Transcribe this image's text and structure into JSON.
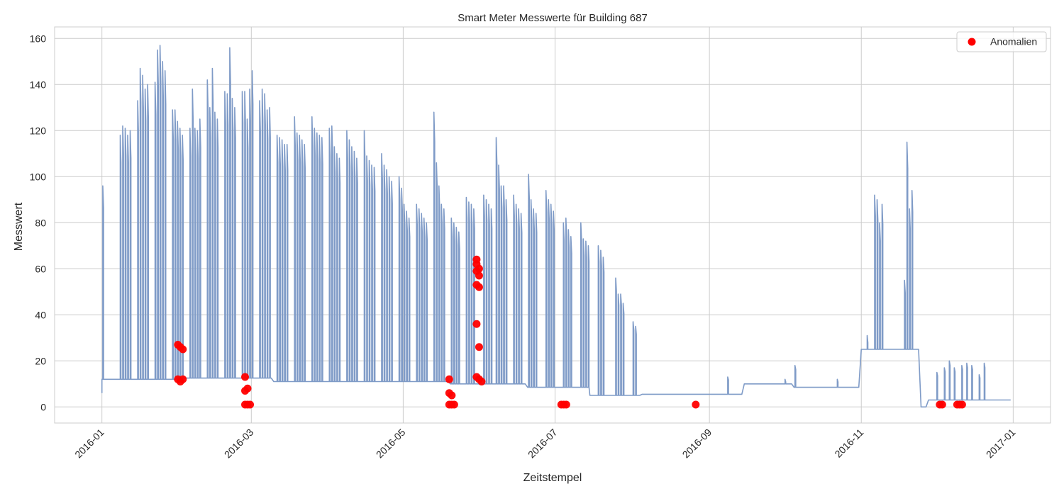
{
  "chart_data": {
    "type": "line",
    "title": "Smart Meter Messwerte für Building 687",
    "xlabel": "Zeitstempel",
    "ylabel": "Messwert",
    "xlim": [
      "2015-12-13",
      "2017-01-16"
    ],
    "ylim": [
      -7,
      165
    ],
    "x_ticks": [
      "2016-01",
      "2016-03",
      "2016-05",
      "2016-07",
      "2016-09",
      "2016-11",
      "2017-01"
    ],
    "y_ticks": [
      0,
      20,
      40,
      60,
      80,
      100,
      120,
      140,
      160
    ],
    "grid": true,
    "legend_position": "top-right",
    "colors": {
      "series": "#7f9bc7",
      "anomaly": "#ff0000",
      "grid": "#cccccc"
    },
    "series": [
      {
        "type": "line",
        "baseline_segments": [
          {
            "from": "2016-01-01",
            "to": "2016-01-31",
            "base": 12
          },
          {
            "from": "2016-01-31",
            "to": "2016-03-10",
            "base": 12.5
          },
          {
            "from": "2016-03-10",
            "to": "2016-05-20",
            "base": 11
          },
          {
            "from": "2016-05-20",
            "to": "2016-06-20",
            "base": 10
          },
          {
            "from": "2016-06-20",
            "to": "2016-07-15",
            "base": 8.5
          },
          {
            "from": "2016-07-15",
            "to": "2016-08-05",
            "base": 5
          },
          {
            "from": "2016-08-05",
            "to": "2016-09-15",
            "base": 5.5
          },
          {
            "from": "2016-09-15",
            "to": "2016-10-05",
            "base": 10
          },
          {
            "from": "2016-10-05",
            "to": "2016-11-01",
            "base": 8.5
          },
          {
            "from": "2016-11-01",
            "to": "2016-11-25",
            "base": 25
          },
          {
            "from": "2016-11-25",
            "to": "2016-11-28",
            "base": 0
          },
          {
            "from": "2016-11-28",
            "to": "2016-12-31",
            "base": 3
          }
        ],
        "daily_peaks": [
          {
            "x": "2016-01-01",
            "y": 96
          },
          {
            "x": "2016-01-08",
            "y": 118
          },
          {
            "x": "2016-01-09",
            "y": 122
          },
          {
            "x": "2016-01-10",
            "y": 121
          },
          {
            "x": "2016-01-11",
            "y": 118
          },
          {
            "x": "2016-01-12",
            "y": 120
          },
          {
            "x": "2016-01-15",
            "y": 133
          },
          {
            "x": "2016-01-16",
            "y": 147
          },
          {
            "x": "2016-01-17",
            "y": 144
          },
          {
            "x": "2016-01-18",
            "y": 138
          },
          {
            "x": "2016-01-19",
            "y": 140
          },
          {
            "x": "2016-01-22",
            "y": 141
          },
          {
            "x": "2016-01-23",
            "y": 155
          },
          {
            "x": "2016-01-24",
            "y": 157
          },
          {
            "x": "2016-01-25",
            "y": 150
          },
          {
            "x": "2016-01-26",
            "y": 146
          },
          {
            "x": "2016-01-29",
            "y": 129
          },
          {
            "x": "2016-01-30",
            "y": 129
          },
          {
            "x": "2016-01-31",
            "y": 124
          },
          {
            "x": "2016-02-01",
            "y": 121
          },
          {
            "x": "2016-02-02",
            "y": 118
          },
          {
            "x": "2016-02-05",
            "y": 121
          },
          {
            "x": "2016-02-06",
            "y": 138
          },
          {
            "x": "2016-02-07",
            "y": 121
          },
          {
            "x": "2016-02-08",
            "y": 120
          },
          {
            "x": "2016-02-09",
            "y": 125
          },
          {
            "x": "2016-02-12",
            "y": 142
          },
          {
            "x": "2016-02-13",
            "y": 130
          },
          {
            "x": "2016-02-14",
            "y": 147
          },
          {
            "x": "2016-02-15",
            "y": 128
          },
          {
            "x": "2016-02-16",
            "y": 125
          },
          {
            "x": "2016-02-19",
            "y": 137
          },
          {
            "x": "2016-02-20",
            "y": 136
          },
          {
            "x": "2016-02-21",
            "y": 156
          },
          {
            "x": "2016-02-22",
            "y": 134
          },
          {
            "x": "2016-02-23",
            "y": 130
          },
          {
            "x": "2016-02-26",
            "y": 137
          },
          {
            "x": "2016-02-27",
            "y": 137
          },
          {
            "x": "2016-02-28",
            "y": 125
          },
          {
            "x": "2016-02-29",
            "y": 138
          },
          {
            "x": "2016-03-01",
            "y": 146
          },
          {
            "x": "2016-03-04",
            "y": 133
          },
          {
            "x": "2016-03-05",
            "y": 138
          },
          {
            "x": "2016-03-06",
            "y": 136
          },
          {
            "x": "2016-03-07",
            "y": 129
          },
          {
            "x": "2016-03-08",
            "y": 130
          },
          {
            "x": "2016-03-11",
            "y": 118
          },
          {
            "x": "2016-03-12",
            "y": 117
          },
          {
            "x": "2016-03-13",
            "y": 116
          },
          {
            "x": "2016-03-14",
            "y": 114
          },
          {
            "x": "2016-03-15",
            "y": 114
          },
          {
            "x": "2016-03-18",
            "y": 126
          },
          {
            "x": "2016-03-19",
            "y": 119
          },
          {
            "x": "2016-03-20",
            "y": 118
          },
          {
            "x": "2016-03-21",
            "y": 116
          },
          {
            "x": "2016-03-22",
            "y": 114
          },
          {
            "x": "2016-03-25",
            "y": 126
          },
          {
            "x": "2016-03-26",
            "y": 121
          },
          {
            "x": "2016-03-27",
            "y": 119
          },
          {
            "x": "2016-03-28",
            "y": 118
          },
          {
            "x": "2016-03-29",
            "y": 117
          },
          {
            "x": "2016-04-01",
            "y": 121
          },
          {
            "x": "2016-04-02",
            "y": 122
          },
          {
            "x": "2016-04-03",
            "y": 113
          },
          {
            "x": "2016-04-04",
            "y": 110
          },
          {
            "x": "2016-04-05",
            "y": 108
          },
          {
            "x": "2016-04-08",
            "y": 120
          },
          {
            "x": "2016-04-09",
            "y": 116
          },
          {
            "x": "2016-04-10",
            "y": 113
          },
          {
            "x": "2016-04-11",
            "y": 111
          },
          {
            "x": "2016-04-12",
            "y": 108
          },
          {
            "x": "2016-04-15",
            "y": 120
          },
          {
            "x": "2016-04-16",
            "y": 109
          },
          {
            "x": "2016-04-17",
            "y": 107
          },
          {
            "x": "2016-04-18",
            "y": 105
          },
          {
            "x": "2016-04-19",
            "y": 104
          },
          {
            "x": "2016-04-22",
            "y": 110
          },
          {
            "x": "2016-04-23",
            "y": 105
          },
          {
            "x": "2016-04-24",
            "y": 103
          },
          {
            "x": "2016-04-25",
            "y": 100
          },
          {
            "x": "2016-04-26",
            "y": 98
          },
          {
            "x": "2016-04-29",
            "y": 100
          },
          {
            "x": "2016-04-30",
            "y": 95
          },
          {
            "x": "2016-05-01",
            "y": 88
          },
          {
            "x": "2016-05-02",
            "y": 85
          },
          {
            "x": "2016-05-03",
            "y": 82
          },
          {
            "x": "2016-05-06",
            "y": 88
          },
          {
            "x": "2016-05-07",
            "y": 86
          },
          {
            "x": "2016-05-08",
            "y": 84
          },
          {
            "x": "2016-05-09",
            "y": 82
          },
          {
            "x": "2016-05-10",
            "y": 80
          },
          {
            "x": "2016-05-13",
            "y": 128
          },
          {
            "x": "2016-05-14",
            "y": 106
          },
          {
            "x": "2016-05-15",
            "y": 96
          },
          {
            "x": "2016-05-16",
            "y": 88
          },
          {
            "x": "2016-05-17",
            "y": 86
          },
          {
            "x": "2016-05-20",
            "y": 82
          },
          {
            "x": "2016-05-21",
            "y": 80
          },
          {
            "x": "2016-05-22",
            "y": 78
          },
          {
            "x": "2016-05-23",
            "y": 76
          },
          {
            "x": "2016-05-26",
            "y": 91
          },
          {
            "x": "2016-05-27",
            "y": 89
          },
          {
            "x": "2016-05-28",
            "y": 88
          },
          {
            "x": "2016-05-29",
            "y": 86
          },
          {
            "x": "2016-06-02",
            "y": 92
          },
          {
            "x": "2016-06-03",
            "y": 90
          },
          {
            "x": "2016-06-04",
            "y": 88
          },
          {
            "x": "2016-06-05",
            "y": 86
          },
          {
            "x": "2016-06-07",
            "y": 117
          },
          {
            "x": "2016-06-08",
            "y": 105
          },
          {
            "x": "2016-06-09",
            "y": 96
          },
          {
            "x": "2016-06-10",
            "y": 96
          },
          {
            "x": "2016-06-11",
            "y": 90
          },
          {
            "x": "2016-06-14",
            "y": 92
          },
          {
            "x": "2016-06-15",
            "y": 88
          },
          {
            "x": "2016-06-16",
            "y": 86
          },
          {
            "x": "2016-06-17",
            "y": 84
          },
          {
            "x": "2016-06-20",
            "y": 101
          },
          {
            "x": "2016-06-21",
            "y": 90
          },
          {
            "x": "2016-06-22",
            "y": 86
          },
          {
            "x": "2016-06-23",
            "y": 84
          },
          {
            "x": "2016-06-27",
            "y": 94
          },
          {
            "x": "2016-06-28",
            "y": 90
          },
          {
            "x": "2016-06-29",
            "y": 88
          },
          {
            "x": "2016-06-30",
            "y": 85
          },
          {
            "x": "2016-07-04",
            "y": 80
          },
          {
            "x": "2016-07-05",
            "y": 82
          },
          {
            "x": "2016-07-06",
            "y": 77
          },
          {
            "x": "2016-07-07",
            "y": 74
          },
          {
            "x": "2016-07-11",
            "y": 80
          },
          {
            "x": "2016-07-12",
            "y": 73
          },
          {
            "x": "2016-07-13",
            "y": 72
          },
          {
            "x": "2016-07-14",
            "y": 70
          },
          {
            "x": "2016-07-18",
            "y": 70
          },
          {
            "x": "2016-07-19",
            "y": 68
          },
          {
            "x": "2016-07-20",
            "y": 65
          },
          {
            "x": "2016-07-25",
            "y": 56
          },
          {
            "x": "2016-07-26",
            "y": 49
          },
          {
            "x": "2016-07-27",
            "y": 49
          },
          {
            "x": "2016-07-28",
            "y": 45
          },
          {
            "x": "2016-08-01",
            "y": 37
          },
          {
            "x": "2016-08-02",
            "y": 35
          },
          {
            "x": "2016-09-08",
            "y": 13
          },
          {
            "x": "2016-10-01",
            "y": 12
          },
          {
            "x": "2016-10-05",
            "y": 18
          },
          {
            "x": "2016-10-22",
            "y": 12
          },
          {
            "x": "2016-11-03",
            "y": 31
          },
          {
            "x": "2016-11-06",
            "y": 92
          },
          {
            "x": "2016-11-07",
            "y": 90
          },
          {
            "x": "2016-11-08",
            "y": 80
          },
          {
            "x": "2016-11-09",
            "y": 88
          },
          {
            "x": "2016-11-18",
            "y": 55
          },
          {
            "x": "2016-11-19",
            "y": 115
          },
          {
            "x": "2016-11-20",
            "y": 86
          },
          {
            "x": "2016-11-21",
            "y": 94
          },
          {
            "x": "2016-12-01",
            "y": 15
          },
          {
            "x": "2016-12-04",
            "y": 17
          },
          {
            "x": "2016-12-06",
            "y": 20
          },
          {
            "x": "2016-12-08",
            "y": 17
          },
          {
            "x": "2016-12-11",
            "y": 18
          },
          {
            "x": "2016-12-13",
            "y": 19
          },
          {
            "x": "2016-12-15",
            "y": 18
          },
          {
            "x": "2016-12-18",
            "y": 14
          },
          {
            "x": "2016-12-20",
            "y": 19
          }
        ]
      },
      {
        "name": "Anomalien",
        "type": "scatter",
        "points": [
          {
            "x": "2016-01-31",
            "y": 27
          },
          {
            "x": "2016-02-01",
            "y": 26
          },
          {
            "x": "2016-02-02",
            "y": 25
          },
          {
            "x": "2016-01-31",
            "y": 12
          },
          {
            "x": "2016-02-01",
            "y": 11
          },
          {
            "x": "2016-02-02",
            "y": 12
          },
          {
            "x": "2016-02-27",
            "y": 13
          },
          {
            "x": "2016-02-27",
            "y": 7
          },
          {
            "x": "2016-02-28",
            "y": 8
          },
          {
            "x": "2016-02-27",
            "y": 1
          },
          {
            "x": "2016-02-28",
            "y": 1
          },
          {
            "x": "2016-02-29",
            "y": 1
          },
          {
            "x": "2016-05-19",
            "y": 12
          },
          {
            "x": "2016-05-19",
            "y": 6
          },
          {
            "x": "2016-05-20",
            "y": 5
          },
          {
            "x": "2016-05-19",
            "y": 1
          },
          {
            "x": "2016-05-20",
            "y": 1
          },
          {
            "x": "2016-05-21",
            "y": 1
          },
          {
            "x": "2016-05-30",
            "y": 64
          },
          {
            "x": "2016-05-30",
            "y": 62
          },
          {
            "x": "2016-05-31",
            "y": 60
          },
          {
            "x": "2016-05-30",
            "y": 59
          },
          {
            "x": "2016-05-31",
            "y": 57
          },
          {
            "x": "2016-05-30",
            "y": 53
          },
          {
            "x": "2016-05-31",
            "y": 52
          },
          {
            "x": "2016-05-30",
            "y": 36
          },
          {
            "x": "2016-05-31",
            "y": 26
          },
          {
            "x": "2016-05-30",
            "y": 13
          },
          {
            "x": "2016-05-31",
            "y": 12
          },
          {
            "x": "2016-06-01",
            "y": 11
          },
          {
            "x": "2016-07-03",
            "y": 1
          },
          {
            "x": "2016-07-04",
            "y": 1
          },
          {
            "x": "2016-07-05",
            "y": 1
          },
          {
            "x": "2016-08-26",
            "y": 1
          },
          {
            "x": "2016-12-02",
            "y": 1
          },
          {
            "x": "2016-12-03",
            "y": 1
          },
          {
            "x": "2016-12-09",
            "y": 1
          },
          {
            "x": "2016-12-10",
            "y": 1
          },
          {
            "x": "2016-12-11",
            "y": 1
          }
        ]
      }
    ]
  }
}
